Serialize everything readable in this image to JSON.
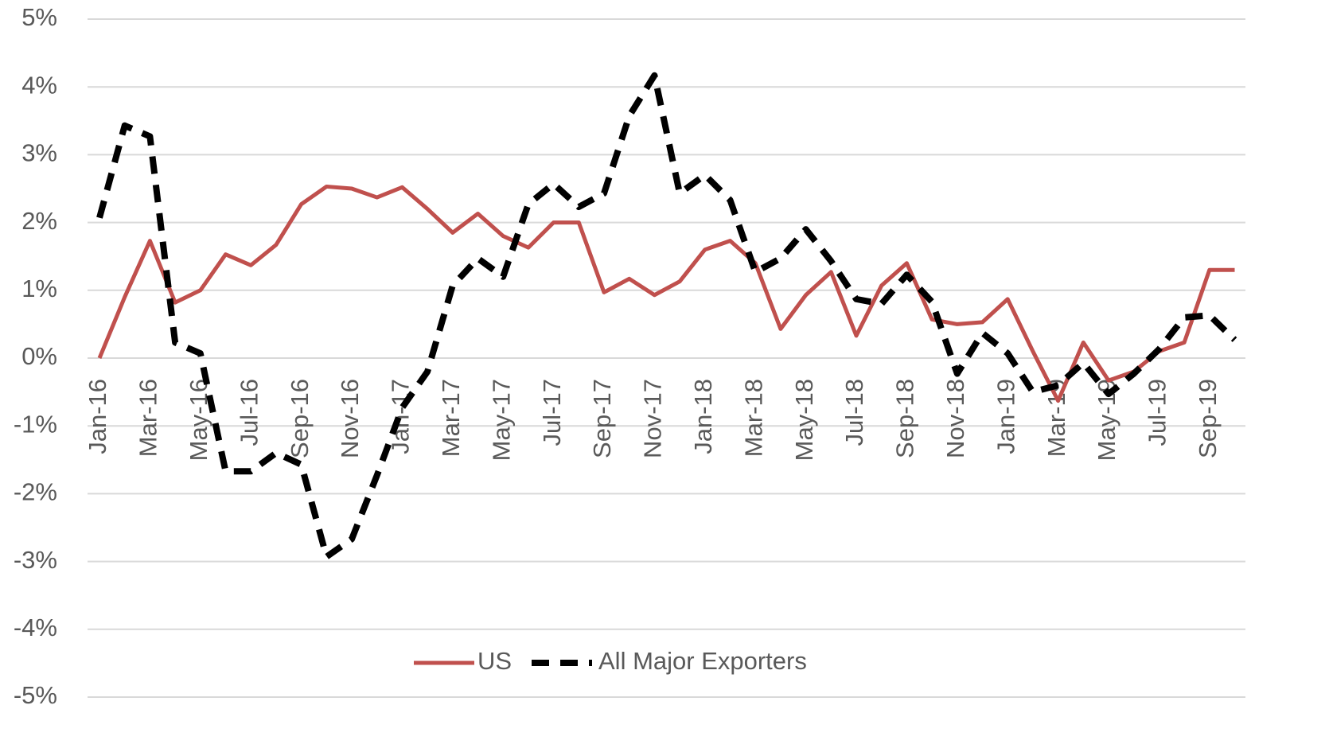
{
  "chart_data": {
    "type": "line",
    "categories": [
      "Jan-16",
      null,
      "Mar-16",
      null,
      "May-16",
      null,
      "Jul-16",
      null,
      "Sep-16",
      null,
      "Nov-16",
      null,
      "Jan-17",
      null,
      "Mar-17",
      null,
      "May-17",
      null,
      "Jul-17",
      null,
      "Sep-17",
      null,
      "Nov-17",
      null,
      "Jan-18",
      null,
      "Mar-18",
      null,
      "May-18",
      null,
      "Jul-18",
      null,
      "Sep-18",
      null,
      "Nov-18",
      null,
      "Jan-19",
      null,
      "Mar-19",
      null,
      "May-19",
      null,
      "Jul-19",
      null,
      "Sep-19",
      null
    ],
    "series": [
      {
        "name": "US",
        "color": "#c0504d",
        "dash": false,
        "values": [
          0,
          0.9,
          1.73,
          0.82,
          1.0,
          1.53,
          1.37,
          1.67,
          2.27,
          2.53,
          2.5,
          2.37,
          2.52,
          2.2,
          1.85,
          2.13,
          1.8,
          1.63,
          2.0,
          2.0,
          0.97,
          1.17,
          0.93,
          1.13,
          1.6,
          1.73,
          1.4,
          0.43,
          0.93,
          1.27,
          0.33,
          1.07,
          1.4,
          0.57,
          0.5,
          0.53,
          0.87,
          0.1,
          -0.63,
          0.23,
          -0.33,
          -0.2,
          0.1,
          0.23,
          1.3,
          1.3
        ]
      },
      {
        "name": "All Major Exporters",
        "color": "#000000",
        "dash": true,
        "values": [
          2.07,
          3.43,
          3.27,
          0.23,
          0.07,
          -1.67,
          -1.67,
          -1.4,
          -1.57,
          -2.93,
          -2.67,
          -1.73,
          -0.73,
          -0.2,
          1.07,
          1.47,
          1.2,
          2.27,
          2.57,
          2.23,
          2.43,
          3.57,
          4.17,
          2.43,
          2.7,
          2.33,
          1.27,
          1.47,
          1.9,
          1.43,
          0.87,
          0.8,
          1.23,
          0.83,
          -0.23,
          0.37,
          0.07,
          -0.5,
          -0.4,
          -0.07,
          -0.53,
          -0.23,
          0.13,
          0.6,
          0.63,
          0.27
        ]
      }
    ],
    "ylim": [
      -5,
      5
    ],
    "yticks": [
      {
        "value": -5,
        "label": "-5%"
      },
      {
        "value": -4,
        "label": "-4%"
      },
      {
        "value": -3,
        "label": "-3%"
      },
      {
        "value": -2,
        "label": "-2%"
      },
      {
        "value": -1,
        "label": "-1%"
      },
      {
        "value": 0,
        "label": "0%"
      },
      {
        "value": 1,
        "label": "1%"
      },
      {
        "value": 2,
        "label": "2%"
      },
      {
        "value": 3,
        "label": "3%"
      },
      {
        "value": 4,
        "label": "4%"
      },
      {
        "value": 5,
        "label": "5%"
      }
    ],
    "grid": true,
    "legend": "bottom"
  }
}
